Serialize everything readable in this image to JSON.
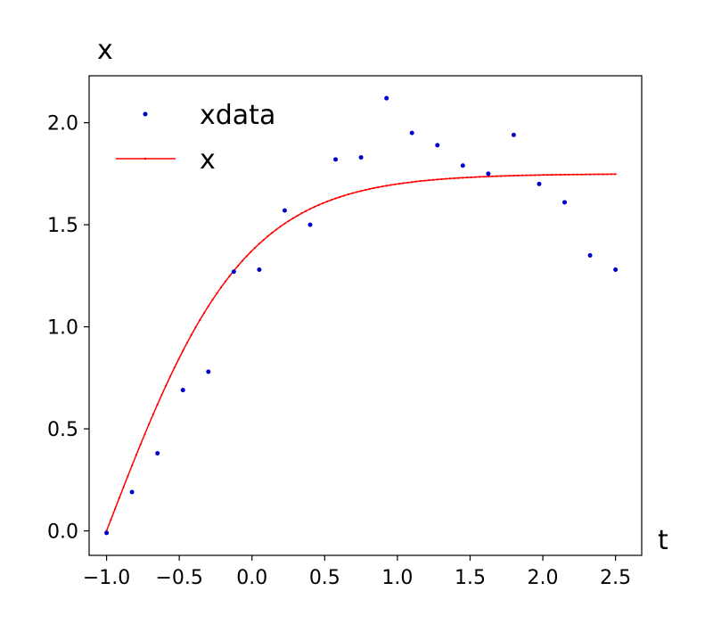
{
  "chart_data": {
    "type": "line",
    "xlabel": "t",
    "ylabel": "x",
    "xlim": [
      -1.12,
      2.68
    ],
    "ylim": [
      -0.12,
      2.23
    ],
    "xticks": [
      "−1.0",
      "−0.5",
      "0.0",
      "0.5",
      "1.0",
      "1.5",
      "2.0",
      "2.5"
    ],
    "yticks": [
      "0.0",
      "0.5",
      "1.0",
      "1.5",
      "2.0"
    ],
    "legend_position": "top-left",
    "colors": {
      "scatter": "#0000cd",
      "line": "#ff0000"
    },
    "series": [
      {
        "name": "xdata",
        "kind": "scatter",
        "x": [
          -1.0,
          -0.825,
          -0.65,
          -0.475,
          -0.3,
          -0.125,
          0.05,
          0.225,
          0.4,
          0.575,
          0.75,
          0.925,
          1.1,
          1.275,
          1.45,
          1.625,
          1.8,
          1.975,
          2.15,
          2.325,
          2.5
        ],
        "y": [
          -0.01,
          0.19,
          0.38,
          0.69,
          0.78,
          1.27,
          1.28,
          1.57,
          1.5,
          1.82,
          1.83,
          2.12,
          1.95,
          1.89,
          1.79,
          1.75,
          1.94,
          1.7,
          1.61,
          1.35,
          1.28
        ]
      },
      {
        "name": "x",
        "kind": "line",
        "model": {
          "plateau": 1.75,
          "rate": 1.85,
          "t0": -1.0,
          "t_end": 2.5,
          "samples": 120
        }
      }
    ]
  }
}
